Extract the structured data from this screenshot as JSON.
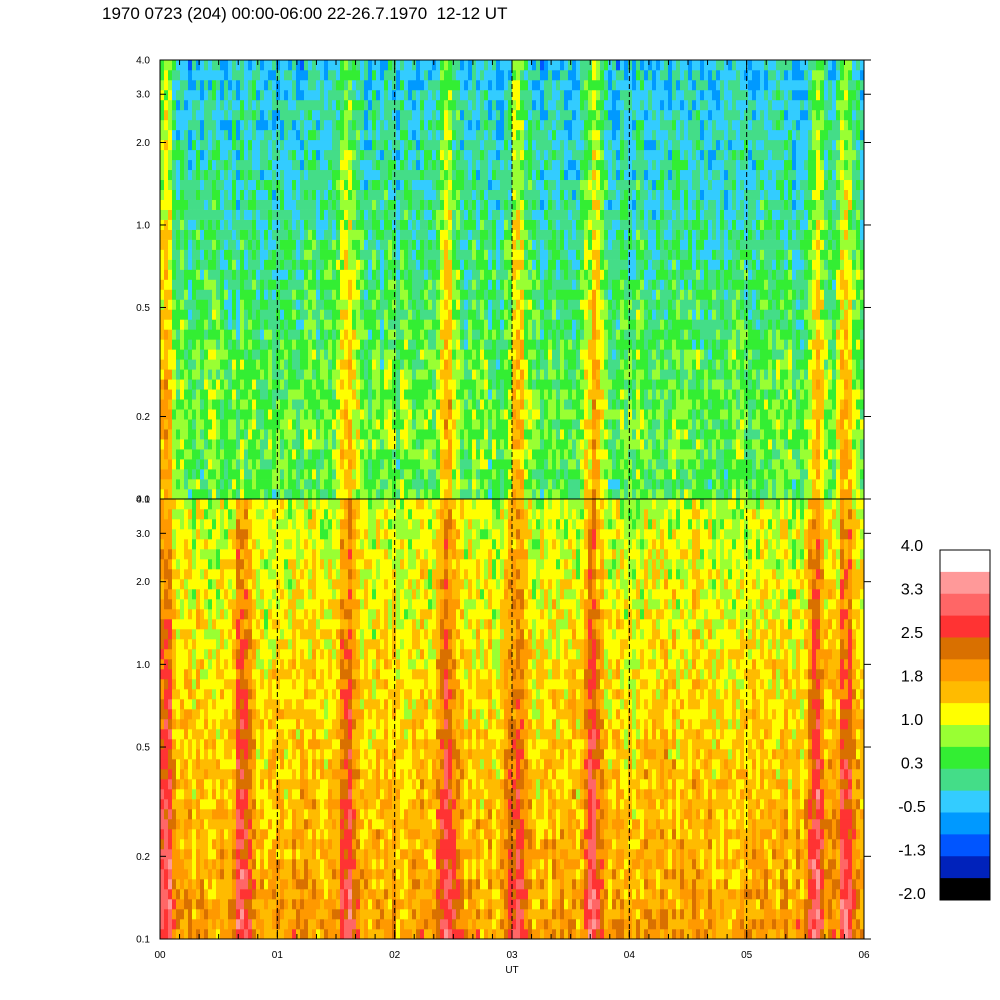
{
  "chart_data": {
    "type": "heatmap",
    "title": "1970 0723 (204) 00:00-06:00 22-26.7.1970  12-12 UT",
    "xlabel": "UT",
    "x_ticks": [
      "00",
      "01",
      "02",
      "03",
      "04",
      "05",
      "06"
    ],
    "xlim": [
      0,
      6
    ],
    "panels": [
      {
        "name": "upper",
        "y_scale": "log",
        "ylim": [
          0.1,
          4.0
        ],
        "y_ticks": [
          "0.1",
          "0.2",
          "0.5",
          "1.0",
          "2.0",
          "3.0",
          "4.0"
        ],
        "y_values": [
          0.1,
          0.2,
          0.5,
          1.0,
          2.0,
          3.0,
          4.0
        ],
        "base_level_low": 0.8,
        "base_level_high": -0.3,
        "bursts_ut": [
          0.05,
          1.6,
          2.45,
          3.05,
          3.7,
          5.6,
          5.85
        ]
      },
      {
        "name": "lower",
        "y_scale": "log",
        "ylim": [
          0.1,
          4.0
        ],
        "y_ticks": [
          "0.1",
          "0.2",
          "0.5",
          "1.0",
          "2.0",
          "3.0",
          "4.0"
        ],
        "y_values": [
          0.1,
          0.2,
          0.5,
          1.0,
          2.0,
          3.0,
          4.0
        ],
        "base_level_low": 1.9,
        "base_level_high": 1.0,
        "bursts_ut": [
          0.05,
          0.7,
          1.6,
          2.45,
          3.05,
          3.7,
          5.6,
          5.85
        ]
      }
    ],
    "colorbar": {
      "labels": [
        "4.0",
        "3.3",
        "2.5",
        "1.8",
        "1.0",
        "0.3",
        "-0.5",
        "-1.3",
        "-2.0"
      ],
      "range": [
        -2.0,
        4.0
      ],
      "colors": [
        "#ffffff",
        "#ff9999",
        "#ff6666",
        "#ff3333",
        "#d97000",
        "#ff9900",
        "#ffbb00",
        "#ffff00",
        "#99ff33",
        "#33ee33",
        "#44dd88",
        "#33ccff",
        "#0099ff",
        "#0055ff",
        "#0022bb",
        "#000000"
      ]
    }
  }
}
